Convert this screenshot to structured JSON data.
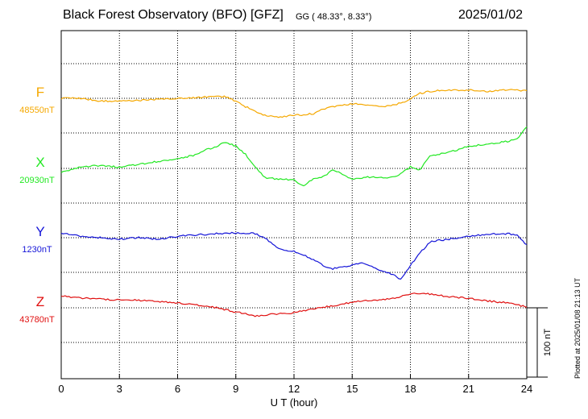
{
  "header": {
    "title": "Black Forest Observatory (BFO)  [GFZ]",
    "coords": "GG ( 48.33°,   8.33°)",
    "date": "2025/01/02"
  },
  "footer": {
    "plotted": "Plotted at 2025/01/08 21:13 UT"
  },
  "chart_data": {
    "type": "line",
    "title": "Black Forest Observatory (BFO)  [GFZ]",
    "xlabel": "U T (hour)",
    "xlim": [
      0,
      24
    ],
    "xticks": [
      0,
      3,
      6,
      9,
      12,
      15,
      18,
      21,
      24
    ],
    "grid": true,
    "scale_bar": {
      "label": "100 nT",
      "value": 100
    },
    "series": [
      {
        "name": "F",
        "baseline_label": "48550nT",
        "baseline": 48550,
        "color": "#f5a800",
        "x": [
          0,
          1,
          2,
          3,
          4,
          5,
          6,
          7,
          8,
          8.5,
          9,
          9.5,
          10,
          10.5,
          11,
          11.5,
          12,
          12.5,
          13,
          13.5,
          14,
          15,
          16,
          16.5,
          17,
          17.5,
          18,
          18.5,
          19,
          20,
          21,
          22,
          23,
          24
        ],
        "y": [
          48550,
          48550,
          48546,
          48546,
          48547,
          48549,
          48550,
          48551,
          48553,
          48552,
          48546,
          48538,
          48532,
          48525,
          48523,
          48524,
          48526,
          48526,
          48528,
          48534,
          48538,
          48542,
          48540,
          48538,
          48540,
          48543,
          48549,
          48557,
          48560,
          48562,
          48562,
          48560,
          48562,
          48561
        ]
      },
      {
        "name": "X",
        "baseline_label": "20930nT",
        "baseline": 20930,
        "color": "#22e822",
        "x": [
          0,
          1,
          2,
          3,
          4,
          5,
          6,
          7,
          7.5,
          8,
          8.5,
          9,
          9.5,
          10,
          10.5,
          11,
          11.5,
          12,
          12.5,
          13,
          13.5,
          14,
          15,
          16,
          17,
          17.5,
          18,
          18.5,
          19,
          20,
          21,
          22,
          23,
          23.5,
          24
        ],
        "y": [
          20925,
          20932,
          20934,
          20932,
          20936,
          20940,
          20944,
          20950,
          20957,
          20962,
          20968,
          20962,
          20950,
          20932,
          20917,
          20915,
          20914,
          20913,
          20905,
          20915,
          20918,
          20928,
          20915,
          20918,
          20917,
          20922,
          20932,
          20928,
          20948,
          20953,
          20962,
          20965,
          20969,
          20972,
          20990
        ]
      },
      {
        "name": "Y",
        "baseline_label": "1230nT",
        "baseline": 1230,
        "color": "#1515d8",
        "x": [
          0,
          1,
          2,
          3,
          4,
          5,
          6,
          7,
          8,
          9,
          10,
          10.5,
          11,
          11.5,
          12,
          12.5,
          13,
          13.5,
          14,
          14.5,
          15,
          15.5,
          16,
          16.5,
          17,
          17.5,
          18,
          18.5,
          19,
          20,
          21,
          22,
          23,
          23.5,
          24
        ],
        "y": [
          1237,
          1232,
          1230,
          1228,
          1230,
          1228,
          1232,
          1234,
          1236,
          1237,
          1236,
          1230,
          1218,
          1212,
          1210,
          1205,
          1198,
          1190,
          1185,
          1188,
          1190,
          1195,
          1188,
          1182,
          1178,
          1170,
          1190,
          1208,
          1224,
          1228,
          1232,
          1235,
          1236,
          1233,
          1220
        ]
      },
      {
        "name": "Z",
        "baseline_label": "43780nT",
        "baseline": 43780,
        "color": "#e01010",
        "x": [
          0,
          1,
          2,
          3,
          4,
          5,
          6,
          7,
          8,
          9,
          9.5,
          10,
          10.5,
          11,
          11.5,
          12,
          13,
          14,
          15,
          16,
          17,
          18,
          18.5,
          19,
          20,
          21,
          22,
          23,
          24
        ],
        "y": [
          43797,
          43794,
          43793,
          43791,
          43791,
          43789,
          43787,
          43784,
          43780,
          43774,
          43771,
          43768,
          43769,
          43771,
          43772,
          43773,
          43778,
          43783,
          43788,
          43791,
          43793,
          43800,
          43801,
          43800,
          43796,
          43794,
          43790,
          43787,
          43781
        ]
      }
    ]
  }
}
